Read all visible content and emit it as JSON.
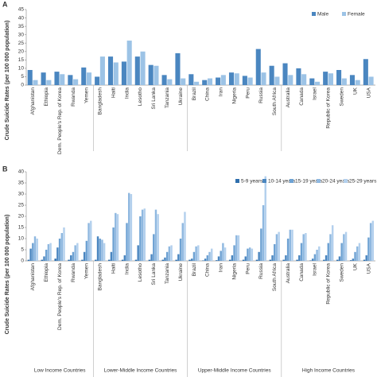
{
  "chart_data": [
    {
      "type": "bar",
      "panel": "A",
      "y_label": "Crude Suicide Rates (per 100 000 population)",
      "ylim": [
        0,
        45
      ],
      "yticks": [
        0,
        5,
        10,
        15,
        20,
        25,
        30,
        35,
        40,
        45
      ],
      "groups": [
        {
          "categories": [
            "Afghanistan",
            "Ethiopia",
            "Dem. People's Rep. of Korea",
            "Rwanda",
            "Yemen"
          ]
        },
        {
          "categories": [
            "Bangladesh",
            "Haiti",
            "India",
            "Lesotho",
            "Sri Lanka",
            "Tanzania",
            "Ukraine"
          ]
        },
        {
          "categories": [
            "Brazil",
            "China",
            "Iran",
            "Nigeria",
            "Peru",
            "Russia",
            "South Africa"
          ]
        },
        {
          "categories": [
            "Australia",
            "Canada",
            "Israel",
            "Republic of Korea",
            "Sweden",
            "UK",
            "USA"
          ]
        }
      ],
      "series": [
        {
          "name": "Male",
          "color": "#4a86c0",
          "values": [
            9,
            7.5,
            8,
            6,
            10.5,
            5,
            17,
            14,
            17,
            12,
            6,
            19,
            6.5,
            3,
            4.5,
            7.5,
            5.5,
            21.5,
            11.5,
            13,
            10,
            4,
            8,
            9,
            6,
            15.5
          ]
        },
        {
          "name": "Female",
          "color": "#9cc3e6",
          "values": [
            3,
            3,
            6.5,
            3.5,
            7.5,
            17,
            13.5,
            26.5,
            20,
            11.5,
            3.5,
            4,
            2,
            4,
            6,
            7,
            4.5,
            7.5,
            5,
            6,
            6.5,
            2,
            7,
            4,
            3,
            5
          ]
        }
      ]
    },
    {
      "type": "bar",
      "panel": "B",
      "y_label": "Crude Suicide Rates (per 100 000 population)",
      "ylim": [
        0,
        40
      ],
      "yticks": [
        0,
        5,
        10,
        15,
        20,
        25,
        30,
        35,
        40
      ],
      "groups": [
        {
          "name": "Low Income Countries",
          "categories": [
            "Afghanistan",
            "Ethiopia",
            "Dem. People's Rep. of Korea",
            "Rwanda",
            "Yemen"
          ]
        },
        {
          "name": "Lower-Middle Income Countries",
          "categories": [
            "Bangladesh",
            "Haiti",
            "India",
            "Lesotho",
            "Sri Lanka",
            "Tanzania",
            "Ukraine"
          ]
        },
        {
          "name": "Upper-Middle Income Countries",
          "categories": [
            "Brazil",
            "China",
            "Iran",
            "Nigeria",
            "Peru",
            "Russia",
            "South Africa"
          ]
        },
        {
          "name": "High Income Countries",
          "categories": [
            "Australia",
            "Canada",
            "Israel",
            "Republic of Korea",
            "Sweden",
            "UK",
            "USA"
          ]
        }
      ],
      "series": [
        {
          "name": "5-9 years",
          "color": "#2f6fad",
          "values": [
            0.5,
            0.5,
            1,
            0.5,
            0.5,
            0.5,
            0.5,
            0.5,
            0.5,
            0.5,
            0.5,
            0.5,
            0.5,
            0.2,
            0.3,
            0.5,
            0.5,
            0.5,
            0.5,
            0.5,
            0.5,
            0.2,
            0.5,
            0.5,
            0.3,
            0.5
          ]
        },
        {
          "name": "10-14 years",
          "color": "#4a86c0",
          "values": [
            5.5,
            2,
            6,
            2.5,
            4,
            11,
            4,
            2.5,
            7,
            3,
            1.5,
            3,
            1,
            1,
            2,
            2.5,
            2,
            4,
            2.5,
            2.5,
            2.5,
            1,
            2.5,
            2,
            1,
            2.5
          ]
        },
        {
          "name": "15-19 years",
          "color": "#6ea2d3",
          "values": [
            8,
            5,
            10,
            4,
            9,
            10,
            15,
            17,
            20,
            12,
            4,
            10,
            4,
            2.5,
            4.5,
            7,
            5.5,
            14.5,
            7.5,
            10,
            8,
            3,
            8,
            8,
            4,
            10.5
          ]
        },
        {
          "name": "20-24 years",
          "color": "#8fb8e0",
          "values": [
            11,
            7.5,
            12.5,
            7,
            17,
            9.5,
            21.5,
            30.5,
            23,
            23,
            6.5,
            17,
            6.5,
            4,
            8,
            11.5,
            6,
            25,
            12,
            14,
            12,
            5,
            12,
            12,
            6.5,
            17
          ]
        },
        {
          "name": "25-29 years",
          "color": "#b3d0ed",
          "values": [
            10,
            8,
            15,
            8,
            18,
            8,
            21,
            30,
            23.5,
            21,
            7,
            22,
            7,
            5.5,
            6,
            11.5,
            5.5,
            38,
            13,
            14,
            12.5,
            6.5,
            16,
            13,
            8,
            18
          ]
        }
      ]
    }
  ]
}
